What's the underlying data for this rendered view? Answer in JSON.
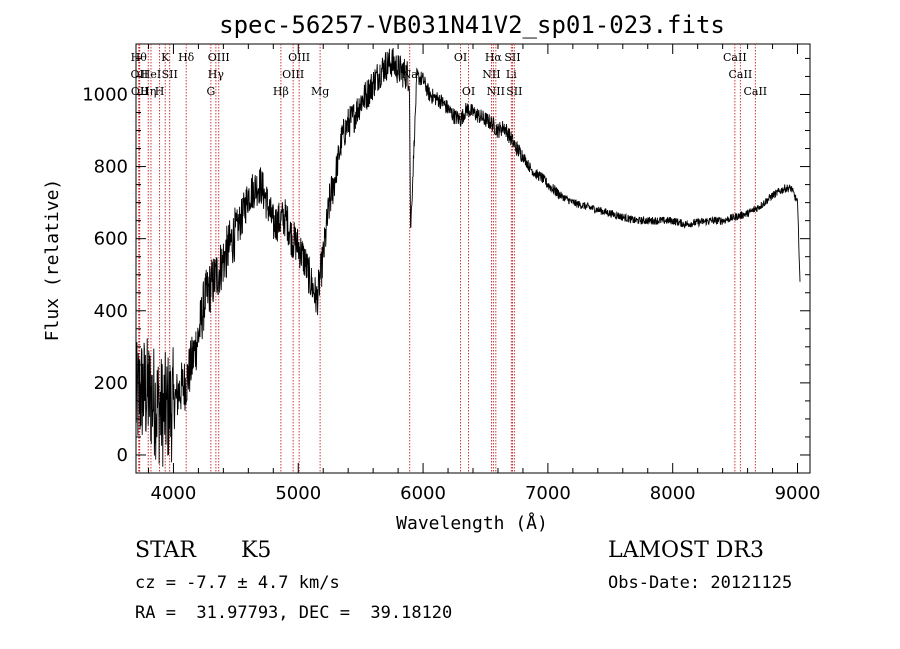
{
  "header": {
    "title": "spec-56257-VB031N41V2_sp01-023.fits"
  },
  "chart_data": {
    "type": "line",
    "title": "spec-56257-VB031N41V2_sp01-023.fits",
    "xlabel": "Wavelength (Å)",
    "ylabel": "Flux (relative)",
    "xlim": [
      3700,
      9100
    ],
    "ylim": [
      -50,
      1140
    ],
    "xticks": [
      4000,
      5000,
      6000,
      7000,
      8000,
      9000
    ],
    "yticks": [
      0,
      200,
      400,
      600,
      800,
      1000
    ],
    "grid": false,
    "series": [
      {
        "x": [
          3700,
          3750,
          3800,
          3850,
          3900,
          3950,
          4000,
          4050,
          4100,
          4150,
          4200,
          4250,
          4300,
          4350,
          4400,
          4450,
          4500,
          4550,
          4600,
          4650,
          4700,
          4750,
          4800,
          4850,
          4900,
          4950,
          5000,
          5050,
          5100,
          5150,
          5200,
          5250,
          5300,
          5350,
          5400,
          5450,
          5500,
          5550,
          5600,
          5650,
          5700,
          5750,
          5800,
          5850,
          5890,
          5900,
          5950,
          6000,
          6050,
          6100,
          6150,
          6200,
          6250,
          6300,
          6350,
          6400,
          6450,
          6500,
          6550,
          6600,
          6650,
          6700,
          6750,
          6800,
          6850,
          6900,
          6950,
          7000,
          7100,
          7200,
          7300,
          7400,
          7500,
          7600,
          7700,
          7800,
          7900,
          8000,
          8100,
          8200,
          8300,
          8400,
          8500,
          8600,
          8700,
          8800,
          8900,
          8950,
          9000,
          9020
        ],
        "y": [
          150,
          180,
          170,
          150,
          120,
          130,
          140,
          180,
          200,
          260,
          330,
          430,
          470,
          500,
          540,
          580,
          620,
          660,
          720,
          740,
          750,
          700,
          640,
          650,
          660,
          600,
          580,
          540,
          480,
          430,
          550,
          700,
          780,
          880,
          920,
          940,
          980,
          1000,
          1030,
          1060,
          1080,
          1090,
          1070,
          1060,
          1050,
          620,
          1050,
          1040,
          1000,
          990,
          980,
          960,
          940,
          930,
          960,
          950,
          940,
          930,
          920,
          900,
          910,
          880,
          850,
          830,
          800,
          780,
          770,
          750,
          720,
          700,
          690,
          680,
          670,
          660,
          650,
          650,
          650,
          650,
          640,
          645,
          650,
          650,
          660,
          670,
          690,
          720,
          740,
          740,
          700,
          480
        ]
      }
    ],
    "line_labels": [
      {
        "x": 3722,
        "row": 1,
        "label": "Hθ"
      },
      {
        "x": 3727,
        "row": 2,
        "label": "OII"
      },
      {
        "x": 3730,
        "row": 3,
        "label": "OII"
      },
      {
        "x": 3798,
        "row": 3,
        "label": "Hη"
      },
      {
        "x": 3820,
        "row": 2,
        "label": "HeI"
      },
      {
        "x": 3889,
        "row": 3,
        "label": "H"
      },
      {
        "x": 3934,
        "row": 1,
        "label": "K"
      },
      {
        "x": 3970,
        "row": 2,
        "label": "SII"
      },
      {
        "x": 4102,
        "row": 1,
        "label": "Hδ"
      },
      {
        "x": 4300,
        "row": 3,
        "label": "G"
      },
      {
        "x": 4340,
        "row": 2,
        "label": "Hγ"
      },
      {
        "x": 4363,
        "row": 1,
        "label": "OIII"
      },
      {
        "x": 4861,
        "row": 3,
        "label": "Hβ"
      },
      {
        "x": 4959,
        "row": 2,
        "label": "OIII"
      },
      {
        "x": 5007,
        "row": 1,
        "label": "OIII"
      },
      {
        "x": 5175,
        "row": 3,
        "label": "Mg"
      },
      {
        "x": 5893,
        "row": 2,
        "label": "Na"
      },
      {
        "x": 6300,
        "row": 1,
        "label": "OI"
      },
      {
        "x": 6364,
        "row": 3,
        "label": "OI"
      },
      {
        "x": 6548,
        "row": 2,
        "label": "NII"
      },
      {
        "x": 6563,
        "row": 1,
        "label": "Hα"
      },
      {
        "x": 6583,
        "row": 3,
        "label": "NII"
      },
      {
        "x": 6707,
        "row": 2,
        "label": "Li"
      },
      {
        "x": 6716,
        "row": 1,
        "label": "SII"
      },
      {
        "x": 6731,
        "row": 3,
        "label": "SII"
      },
      {
        "x": 8498,
        "row": 1,
        "label": "CaII"
      },
      {
        "x": 8542,
        "row": 2,
        "label": "CaII"
      },
      {
        "x": 8662,
        "row": 3,
        "label": "CaII"
      }
    ],
    "line_color": "#cc2222"
  },
  "info": {
    "object_class": "STAR",
    "subclass": "K5",
    "survey": "LAMOST DR3",
    "redshift": "cz = -7.7 ± 4.7 km/s",
    "obs_date": "Obs-Date: 20121125",
    "coords": "RA =  31.97793, DEC =  39.18120"
  }
}
